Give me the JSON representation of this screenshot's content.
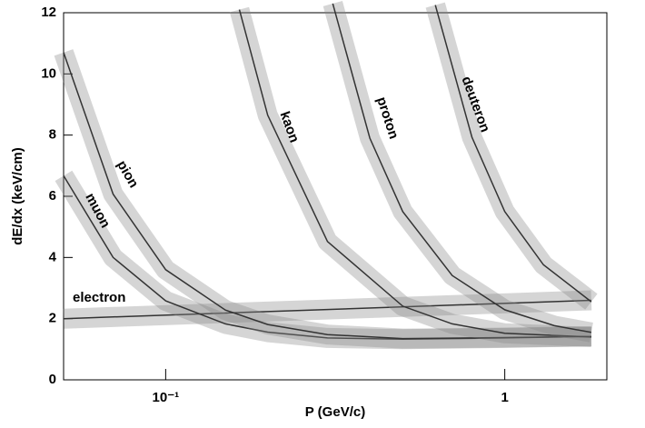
{
  "chart_data": {
    "type": "line",
    "xlabel": "P (GeV/c)",
    "ylabel": "dE/dx (keV/cm)",
    "xscale": "log",
    "xlim": [
      0.05,
      2
    ],
    "xticks": [
      {
        "value": 0.1,
        "label": "10⁻¹"
      },
      1
    ],
    "ylim": [
      0,
      12
    ],
    "yticks": [
      0,
      2,
      4,
      6,
      8,
      10,
      12
    ],
    "grid": false,
    "series": [
      {
        "name": "electron",
        "color": "#333333",
        "x": [
          0.05,
          1.8
        ],
        "values": [
          2.0,
          2.6
        ]
      },
      {
        "name": "muon",
        "color": "#333333",
        "x": [
          0.05,
          0.07,
          0.1,
          0.15,
          0.2,
          0.3,
          0.5,
          1,
          1.8
        ],
        "values": [
          6.67,
          4.0,
          2.58,
          1.83,
          1.56,
          1.37,
          1.33,
          1.37,
          1.42
        ]
      },
      {
        "name": "pion",
        "color": "#333333",
        "x": [
          0.05,
          0.07,
          0.1,
          0.15,
          0.2,
          0.3,
          0.5,
          1,
          1.8
        ],
        "values": [
          10.7,
          6.07,
          3.6,
          2.28,
          1.81,
          1.48,
          1.35,
          1.38,
          1.42
        ]
      },
      {
        "name": "kaon",
        "color": "#333333",
        "x": [
          0.165,
          0.2,
          0.3,
          0.5,
          0.7,
          1,
          1.8
        ],
        "values": [
          12.1,
          8.65,
          4.52,
          2.41,
          1.83,
          1.52,
          1.4
        ]
      },
      {
        "name": "proton",
        "color": "#333333",
        "x": [
          0.311,
          0.4,
          0.5,
          0.7,
          1,
          1.4,
          1.8
        ],
        "values": [
          12.3,
          7.9,
          5.5,
          3.41,
          2.29,
          1.77,
          1.55
        ]
      },
      {
        "name": "deuteron",
        "color": "#333333",
        "x": [
          0.624,
          0.8,
          1,
          1.3,
          1.8
        ],
        "values": [
          12.25,
          7.93,
          5.5,
          3.76,
          2.55
        ]
      }
    ]
  }
}
